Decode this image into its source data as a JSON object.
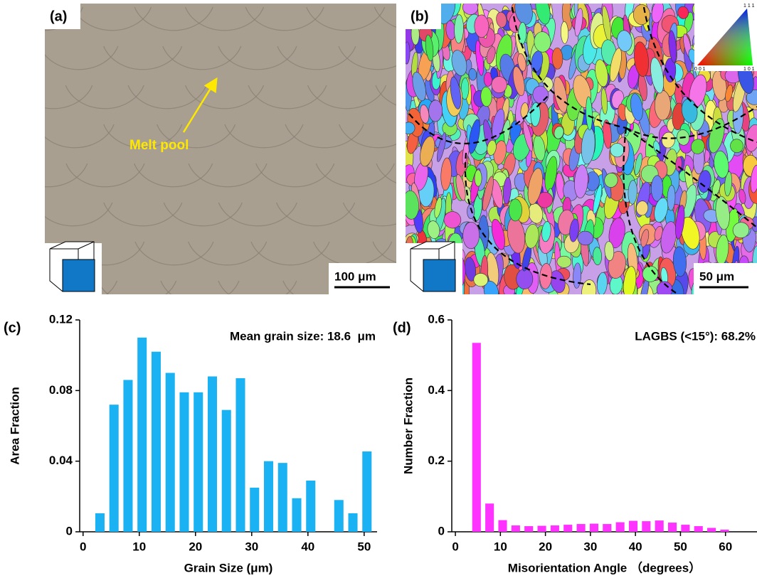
{
  "panels": {
    "a": {
      "label": "(a)",
      "annotation": "Melt pool",
      "scale_bar": "100 μm"
    },
    "b": {
      "label": "(b)",
      "scale_bar": "50 μm",
      "ipf_legend": {
        "top": "1 1 1",
        "left": "0 0 1",
        "right": "1 0 1"
      }
    }
  },
  "chart_data": [
    {
      "type": "bar",
      "panel_label": "(c)",
      "x_label": "Grain Size (μm)",
      "y_label": "Area Fraction",
      "annotation": "Mean grain size: 18.6  μm",
      "x": [
        3,
        5.5,
        8,
        10.5,
        13,
        15.5,
        18,
        20.5,
        23,
        25.5,
        28,
        30.5,
        33,
        35.5,
        38,
        40.5,
        45.5,
        48,
        50.5
      ],
      "values": [
        0.0105,
        0.072,
        0.086,
        0.11,
        0.102,
        0.09,
        0.079,
        0.079,
        0.088,
        0.069,
        0.087,
        0.025,
        0.04,
        0.039,
        0.019,
        0.029,
        0.018,
        0.0105,
        0.0455
      ],
      "color": "#1ab2f2",
      "xlim": [
        -0.6,
        52.3
      ],
      "ylim": [
        0,
        0.12
      ],
      "xticks": [
        0,
        10,
        20,
        30,
        40,
        50
      ],
      "yticks": [
        0,
        0.04,
        0.08,
        0.12
      ]
    },
    {
      "type": "bar",
      "panel_label": "(d)",
      "x_label": "Misorientation Angle （degrees）",
      "y_label": "Number Fraction",
      "annotation": "LAGBS (<15°): 68.2%",
      "x": [
        4.7,
        7.6,
        10.5,
        13.4,
        16.3,
        19.2,
        22.1,
        25,
        27.9,
        30.8,
        33.7,
        36.6,
        39.5,
        42.4,
        45.3,
        48.2,
        51.1,
        54,
        56.9,
        59.8
      ],
      "values": [
        0.535,
        0.08,
        0.033,
        0.018,
        0.016,
        0.017,
        0.018,
        0.02,
        0.022,
        0.023,
        0.022,
        0.027,
        0.031,
        0.03,
        0.032,
        0.026,
        0.02,
        0.016,
        0.011,
        0.006
      ],
      "color": "#ff33ff",
      "xlim": [
        -0.8,
        67
      ],
      "ylim": [
        0,
        0.6
      ],
      "xticks": [
        0,
        10,
        20,
        30,
        40,
        50,
        60
      ],
      "yticks": [
        0,
        0.2,
        0.4,
        0.6
      ]
    }
  ]
}
